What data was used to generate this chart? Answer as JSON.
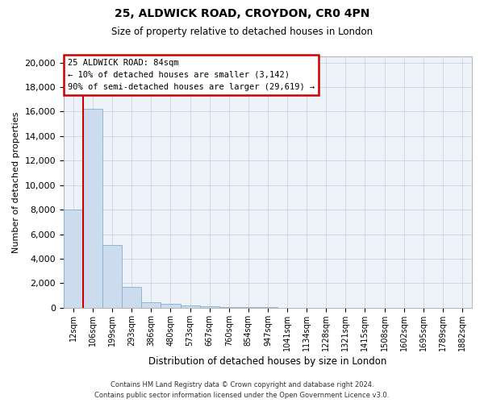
{
  "title_line1": "25, ALDWICK ROAD, CROYDON, CR0 4PN",
  "title_line2": "Size of property relative to detached houses in London",
  "xlabel": "Distribution of detached houses by size in London",
  "ylabel": "Number of detached properties",
  "categories": [
    "12sqm",
    "106sqm",
    "199sqm",
    "293sqm",
    "386sqm",
    "480sqm",
    "573sqm",
    "667sqm",
    "760sqm",
    "854sqm",
    "947sqm",
    "1041sqm",
    "1134sqm",
    "1228sqm",
    "1321sqm",
    "1415sqm",
    "1508sqm",
    "1602sqm",
    "1695sqm",
    "1789sqm",
    "1882sqm"
  ],
  "values": [
    8000,
    16200,
    5100,
    1700,
    480,
    300,
    180,
    130,
    80,
    50,
    30,
    20,
    15,
    10,
    8,
    6,
    5,
    4,
    3,
    2,
    2
  ],
  "bar_color": "#ccdcee",
  "bar_edge_color": "#82afd0",
  "highlight_color": "#cc0000",
  "annotation_text": "25 ALDWICK ROAD: 84sqm\n← 10% of detached houses are smaller (3,142)\n90% of semi-detached houses are larger (29,619) →",
  "ylim": [
    0,
    20500
  ],
  "yticks": [
    0,
    2000,
    4000,
    6000,
    8000,
    10000,
    12000,
    14000,
    16000,
    18000,
    20000
  ],
  "grid_color": "#c8d4e4",
  "footer_line1": "Contains HM Land Registry data © Crown copyright and database right 2024.",
  "footer_line2": "Contains public sector information licensed under the Open Government Licence v3.0.",
  "fig_bg": "#ffffff",
  "ax_bg": "#edf2f9",
  "vline_x": 0.5
}
